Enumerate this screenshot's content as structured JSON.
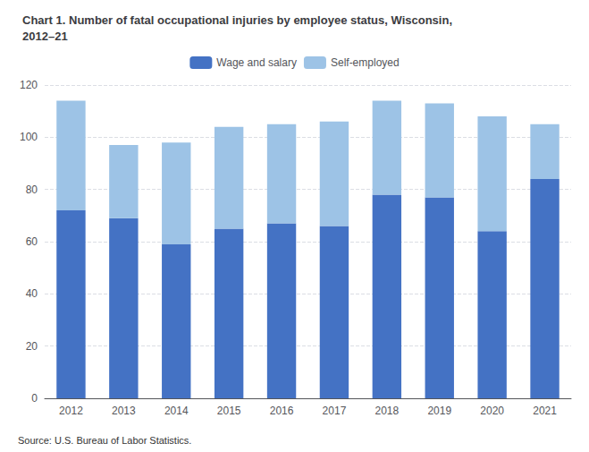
{
  "chart_data": {
    "type": "bar",
    "title": "Chart 1. Number of fatal occupational injuries by employee status, Wisconsin,\n2012–21",
    "categories": [
      "2012",
      "2013",
      "2014",
      "2015",
      "2016",
      "2017",
      "2018",
      "2019",
      "2020",
      "2021"
    ],
    "series": [
      {
        "name": "Wage and salary",
        "color": "#4472C4",
        "values": [
          72,
          69,
          59,
          65,
          67,
          66,
          78,
          77,
          64,
          84
        ]
      },
      {
        "name": "Self-employed",
        "color": "#9DC3E6",
        "values": [
          42,
          28,
          39,
          39,
          38,
          40,
          36,
          36,
          44,
          21
        ]
      }
    ],
    "stacked": true,
    "ylim": [
      0,
      120
    ],
    "yticks": [
      0,
      20,
      40,
      60,
      80,
      100,
      120
    ],
    "grid": true,
    "legend": "top",
    "annotations": [
      "Source: U.S. Bureau of Labor Statistics."
    ]
  }
}
